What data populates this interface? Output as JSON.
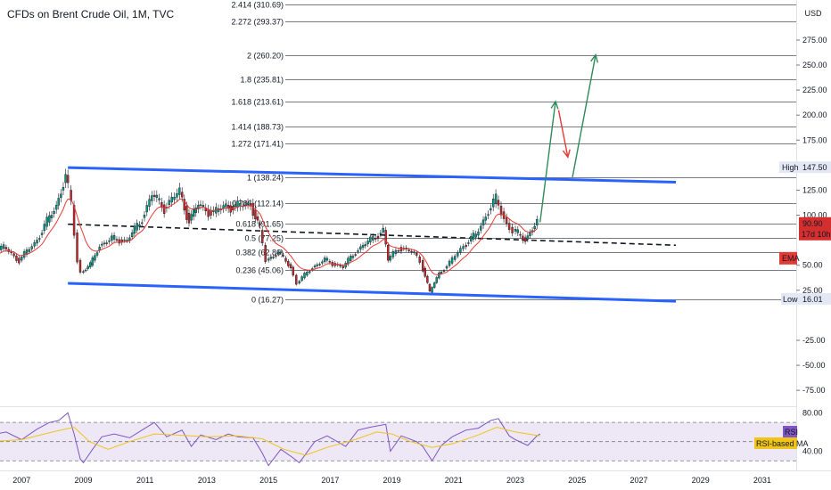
{
  "chart_data": {
    "type": "line",
    "title": "CFDs on Brent Crude Oil, 1M, TVC",
    "currency": "USD",
    "price_axis": {
      "ticks": [
        {
          "value": 275,
          "label": "275.00"
        },
        {
          "value": 250,
          "label": "250.00"
        },
        {
          "value": 225,
          "label": "225.00"
        },
        {
          "value": 200,
          "label": "200.00"
        },
        {
          "value": 175,
          "label": "175.00"
        },
        {
          "value": 125,
          "label": "125.00"
        },
        {
          "value": 100,
          "label": "100.00"
        },
        {
          "value": 50,
          "label": "50.00"
        },
        {
          "value": 25,
          "label": "25.00"
        },
        {
          "value": -25,
          "label": "-25.00"
        },
        {
          "value": -50,
          "label": "-50.00"
        },
        {
          "value": -75,
          "label": "-75.00"
        }
      ],
      "ylim": [
        -90,
        315
      ]
    },
    "time_axis": {
      "labels": [
        "2007",
        "2009",
        "2011",
        "2013",
        "2015",
        "2017",
        "2019",
        "2021",
        "2023",
        "2025",
        "2027",
        "2029",
        "2031"
      ],
      "xlim": [
        2006.3,
        2032.1
      ]
    },
    "fib_levels": [
      {
        "ratio": "2.414",
        "value": 310.69,
        "label": "2.414 (310.69)"
      },
      {
        "ratio": "2.272",
        "value": 293.37,
        "label": "2.272 (293.37)"
      },
      {
        "ratio": "2",
        "value": 260.2,
        "label": "2 (260.20)"
      },
      {
        "ratio": "1.8",
        "value": 235.81,
        "label": "1.8 (235.81)"
      },
      {
        "ratio": "1.618",
        "value": 213.61,
        "label": "1.618 (213.61)"
      },
      {
        "ratio": "1.414",
        "value": 188.73,
        "label": "1.414 (188.73)"
      },
      {
        "ratio": "1.272",
        "value": 171.41,
        "label": "1.272 (171.41)"
      },
      {
        "ratio": "1",
        "value": 138.24,
        "label": "1 (138.24)"
      },
      {
        "ratio": "0.786",
        "value": 112.14,
        "label": "0.786 (112.14)"
      },
      {
        "ratio": "0.618",
        "value": 91.65,
        "label": "0.618 (91.65)"
      },
      {
        "ratio": "0.5",
        "value": 77.25,
        "label": "0.5 (77.25)"
      },
      {
        "ratio": "0.382",
        "value": 62.86,
        "label": "0.382 (62.86)"
      },
      {
        "ratio": "0.236",
        "value": 45.06,
        "label": "0.236 (45.06)"
      },
      {
        "ratio": "0",
        "value": 16.27,
        "label": "0 (16.27)"
      }
    ],
    "price_series": {
      "name": "Brent",
      "points": [
        [
          2006.0,
          60
        ],
        [
          2006.5,
          68
        ],
        [
          2007.0,
          55
        ],
        [
          2007.5,
          72
        ],
        [
          2007.9,
          93
        ],
        [
          2008.2,
          110
        ],
        [
          2008.5,
          140
        ],
        [
          2008.7,
          110
        ],
        [
          2008.9,
          55
        ],
        [
          2009.0,
          43
        ],
        [
          2009.3,
          50
        ],
        [
          2009.6,
          70
        ],
        [
          2010.0,
          76
        ],
        [
          2010.5,
          75
        ],
        [
          2010.9,
          92
        ],
        [
          2011.3,
          120
        ],
        [
          2011.7,
          108
        ],
        [
          2012.2,
          123
        ],
        [
          2012.5,
          95
        ],
        [
          2012.8,
          110
        ],
        [
          2013.3,
          102
        ],
        [
          2013.7,
          110
        ],
        [
          2014.0,
          108
        ],
        [
          2014.5,
          112
        ],
        [
          2014.8,
          85
        ],
        [
          2015.0,
          55
        ],
        [
          2015.4,
          63
        ],
        [
          2015.8,
          48
        ],
        [
          2016.0,
          32
        ],
        [
          2016.5,
          48
        ],
        [
          2016.9,
          55
        ],
        [
          2017.5,
          48
        ],
        [
          2017.9,
          64
        ],
        [
          2018.3,
          73
        ],
        [
          2018.8,
          85
        ],
        [
          2018.95,
          55
        ],
        [
          2019.3,
          68
        ],
        [
          2019.8,
          62
        ],
        [
          2020.0,
          55
        ],
        [
          2020.3,
          23
        ],
        [
          2020.6,
          42
        ],
        [
          2020.95,
          52
        ],
        [
          2021.4,
          70
        ],
        [
          2021.8,
          80
        ],
        [
          2022.2,
          105
        ],
        [
          2022.45,
          115
        ],
        [
          2022.8,
          92
        ],
        [
          2023.0,
          84
        ],
        [
          2023.4,
          76
        ],
        [
          2023.7,
          90
        ],
        [
          2023.8,
          93
        ]
      ]
    },
    "ema": {
      "name": "EMA",
      "label": "EMA",
      "value": 57
    },
    "last_price": {
      "value": 90.9,
      "label": "90.90",
      "countdown": "17d 10h"
    },
    "high_marker": {
      "label": "High",
      "value": 147.5,
      "value_label": "147.50"
    },
    "low_marker": {
      "label": "Low",
      "value": 16.01,
      "value_label": "16.01"
    },
    "channel": {
      "upper": [
        [
          2008.5,
          147.5
        ],
        [
          2028.2,
          133
        ]
      ],
      "lower": [
        [
          2008.5,
          32
        ],
        [
          2028.2,
          14
        ]
      ],
      "mid": [
        [
          2008.5,
          91
        ],
        [
          2028.2,
          70
        ]
      ]
    },
    "projection": {
      "green1": [
        [
          2023.8,
          93
        ],
        [
          2024.3,
          213.6
        ]
      ],
      "red": [
        [
          2024.4,
          205
        ],
        [
          2024.7,
          158
        ]
      ],
      "green2": [
        [
          2024.85,
          138
        ],
        [
          2025.6,
          260.2
        ]
      ]
    },
    "rsi": {
      "name": "RSI",
      "label": "RSI",
      "ma_label": "RSI-based MA",
      "ticks": [
        {
          "value": 80,
          "label": "80.00"
        },
        {
          "value": 40,
          "label": "40.00"
        }
      ],
      "band": [
        30,
        70
      ],
      "ylim": [
        20,
        85
      ],
      "points": [
        [
          2006.0,
          57
        ],
        [
          2006.5,
          60
        ],
        [
          2007.0,
          52
        ],
        [
          2007.5,
          63
        ],
        [
          2007.9,
          70
        ],
        [
          2008.2,
          72
        ],
        [
          2008.5,
          80
        ],
        [
          2008.7,
          58
        ],
        [
          2008.9,
          32
        ],
        [
          2009.0,
          28
        ],
        [
          2009.3,
          42
        ],
        [
          2009.6,
          55
        ],
        [
          2010.0,
          58
        ],
        [
          2010.5,
          54
        ],
        [
          2010.9,
          62
        ],
        [
          2011.3,
          70
        ],
        [
          2011.7,
          55
        ],
        [
          2012.2,
          62
        ],
        [
          2012.5,
          45
        ],
        [
          2012.8,
          57
        ],
        [
          2013.3,
          52
        ],
        [
          2013.7,
          58
        ],
        [
          2014.0,
          55
        ],
        [
          2014.5,
          54
        ],
        [
          2014.8,
          38
        ],
        [
          2015.0,
          25
        ],
        [
          2015.4,
          42
        ],
        [
          2015.8,
          33
        ],
        [
          2016.0,
          28
        ],
        [
          2016.5,
          50
        ],
        [
          2016.9,
          56
        ],
        [
          2017.5,
          45
        ],
        [
          2017.9,
          62
        ],
        [
          2018.3,
          65
        ],
        [
          2018.8,
          68
        ],
        [
          2018.95,
          40
        ],
        [
          2019.3,
          56
        ],
        [
          2019.8,
          50
        ],
        [
          2020.0,
          45
        ],
        [
          2020.3,
          30
        ],
        [
          2020.6,
          46
        ],
        [
          2020.95,
          55
        ],
        [
          2021.4,
          62
        ],
        [
          2021.8,
          64
        ],
        [
          2022.2,
          72
        ],
        [
          2022.45,
          74
        ],
        [
          2022.8,
          56
        ],
        [
          2023.0,
          52
        ],
        [
          2023.4,
          46
        ],
        [
          2023.7,
          56
        ],
        [
          2023.8,
          58
        ]
      ],
      "ma_points": [
        [
          2006.0,
          50
        ],
        [
          2007.0,
          52
        ],
        [
          2008.0,
          60
        ],
        [
          2008.7,
          65
        ],
        [
          2009.2,
          50
        ],
        [
          2009.8,
          42
        ],
        [
          2010.5,
          50
        ],
        [
          2011.3,
          58
        ],
        [
          2012.0,
          57
        ],
        [
          2013.0,
          55
        ],
        [
          2014.0,
          56
        ],
        [
          2014.8,
          53
        ],
        [
          2015.5,
          42
        ],
        [
          2016.2,
          36
        ],
        [
          2016.9,
          44
        ],
        [
          2017.8,
          52
        ],
        [
          2018.5,
          60
        ],
        [
          2019.0,
          58
        ],
        [
          2019.6,
          50
        ],
        [
          2020.3,
          44
        ],
        [
          2021.0,
          48
        ],
        [
          2021.8,
          57
        ],
        [
          2022.4,
          65
        ],
        [
          2023.0,
          60
        ],
        [
          2023.8,
          56
        ]
      ]
    },
    "colors": {
      "channel": "#2962ff",
      "projection_up": "#2e8b57",
      "projection_down": "#e53935",
      "candle_up": "#089981",
      "candle_down": "#c62828",
      "ema": "#e53935",
      "rsi": "#7e57c2",
      "rsi_ma": "#f0c419",
      "last_price": "#d32f2f"
    }
  }
}
